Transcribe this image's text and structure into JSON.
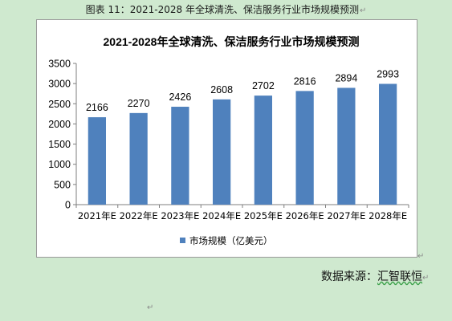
{
  "caption": {
    "text": "图表 11：2021-2028 年全球清洗、保洁服务行业市场规模预测",
    "return_mark": "↵"
  },
  "source": {
    "label": "数据来源：",
    "name": "汇智联恒",
    "return_mark": "↵"
  },
  "paragraph_marks": {
    "after_chart": "↵",
    "bottom": "↵"
  },
  "colors": {
    "bar": "#4f81bd",
    "background": "#cfe9cf"
  },
  "chart_data": {
    "type": "bar",
    "title": "2021-2028年全球清洗、保洁服务行业市场规模预测",
    "categories": [
      "2021年E",
      "2022年E",
      "2023年E",
      "2024年E",
      "2025年E",
      "2026年E",
      "2027年E",
      "2028年E"
    ],
    "series": [
      {
        "name": "市场规模（亿美元）",
        "values": [
          2166,
          2270,
          2426,
          2608,
          2702,
          2816,
          2894,
          2993
        ]
      }
    ],
    "ylim": [
      0,
      3500
    ],
    "yticks": [
      0,
      500,
      1000,
      1500,
      2000,
      2500,
      3000,
      3500
    ],
    "grid": false,
    "legend_position": "bottom",
    "data_labels": true
  }
}
